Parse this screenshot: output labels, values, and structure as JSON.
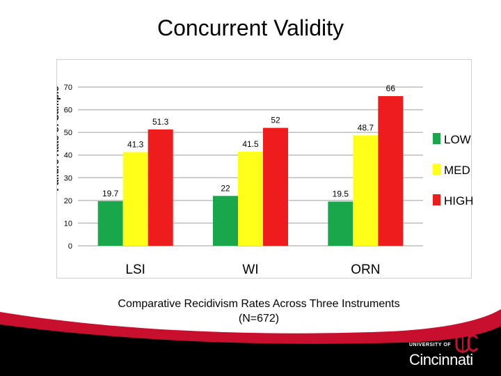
{
  "slide": {
    "title": "Concurrent Validity",
    "caption_line1": "Comparative Recidivism Rates Across Three Instruments",
    "caption_line2": "(N=672)"
  },
  "logo": {
    "small_text": "UNIVERSITY OF",
    "big_text": "Cincinnati",
    "mark_text": "UC"
  },
  "colors": {
    "accent_red": "#c8102e",
    "band_dark": "#000000"
  },
  "chart_data": {
    "type": "bar",
    "ylabel": "Failure Rate of Sample",
    "xlabel": "",
    "ylim": [
      0,
      70
    ],
    "yticks": [
      0,
      10,
      20,
      30,
      40,
      50,
      60,
      70
    ],
    "grid": true,
    "legend_position": "right",
    "categories": [
      "LSI",
      "WI",
      "ORN"
    ],
    "series": [
      {
        "name": "LOW",
        "color": "#1aa64a",
        "values": [
          19.7,
          22,
          19.5
        ],
        "labels": [
          "19.7",
          "22",
          "19.5"
        ]
      },
      {
        "name": "MED",
        "color": "#ffff1a",
        "values": [
          41.3,
          41.5,
          48.7
        ],
        "labels": [
          "41.3",
          "41.5",
          "48.7"
        ]
      },
      {
        "name": "HIGH",
        "color": "#ee1c1c",
        "values": [
          51.3,
          52,
          66
        ],
        "labels": [
          "51.3",
          "52",
          "66"
        ]
      }
    ]
  }
}
